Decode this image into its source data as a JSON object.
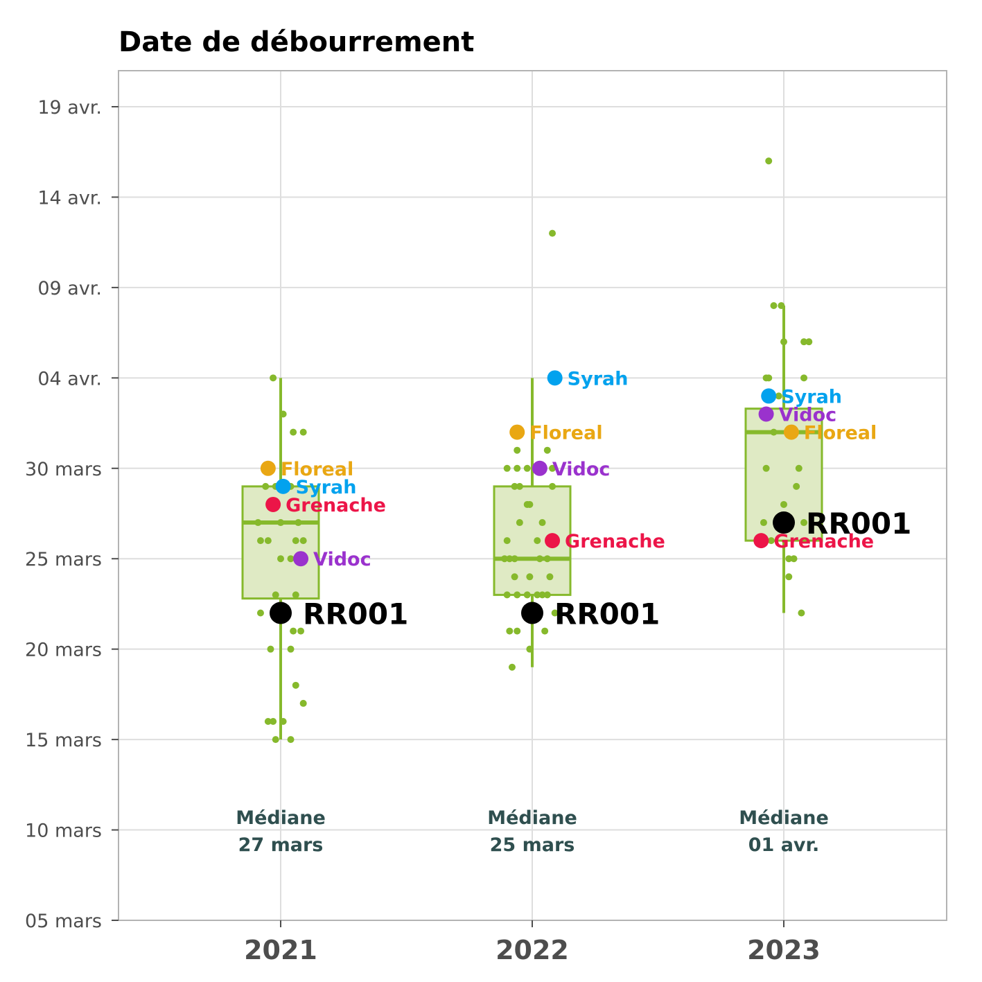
{
  "chart_data": {
    "type": "box",
    "title": "Date de débourrement",
    "xlabel": "",
    "ylabel": "",
    "categories": [
      "2021",
      "2022",
      "2023"
    ],
    "y_axis": {
      "min": "2021-03-05",
      "max": "2021-04-22",
      "ticks": [
        {
          "date": "2021-03-05",
          "label": "05 mars"
        },
        {
          "date": "2021-03-10",
          "label": "10 mars"
        },
        {
          "date": "2021-03-15",
          "label": "15 mars"
        },
        {
          "date": "2021-03-20",
          "label": "20 mars"
        },
        {
          "date": "2021-03-25",
          "label": "25 mars"
        },
        {
          "date": "2021-03-30",
          "label": "30 mars"
        },
        {
          "date": "2021-04-04",
          "label": "04 avr."
        },
        {
          "date": "2021-04-09",
          "label": "09 avr."
        },
        {
          "date": "2021-04-14",
          "label": "14 avr."
        },
        {
          "date": "2021-04-19",
          "label": "19 avr."
        }
      ]
    },
    "grid": true,
    "colors": {
      "box": "#86b92c",
      "box_fill": "#dfeac4",
      "points": "#86b92c",
      "reference": "#000000",
      "median_text": "#2f4f4f"
    },
    "groups": [
      {
        "year": "2021",
        "median_label": "Médiane",
        "median_value": "27 mars",
        "box": {
          "whisker_low": "03-15",
          "q1": "03-22.8",
          "median": "03-27",
          "q3": "03-29",
          "whisker_high": "04-04"
        },
        "points": [
          {
            "dx": -0.03,
            "d": "04-04"
          },
          {
            "dx": 0.01,
            "d": "04-02"
          },
          {
            "dx": 0.05,
            "d": "04-01"
          },
          {
            "dx": 0.09,
            "d": "04-01"
          },
          {
            "dx": -0.06,
            "d": "29"
          },
          {
            "dx": -0.02,
            "d": "29"
          },
          {
            "dx": 0.04,
            "d": "29"
          },
          {
            "dx": -0.09,
            "d": "27"
          },
          {
            "dx": 0.0,
            "d": "27"
          },
          {
            "dx": 0.07,
            "d": "27"
          },
          {
            "dx": -0.08,
            "d": "26"
          },
          {
            "dx": -0.05,
            "d": "26"
          },
          {
            "dx": 0.06,
            "d": "26"
          },
          {
            "dx": 0.09,
            "d": "26"
          },
          {
            "dx": 0.0,
            "d": "25"
          },
          {
            "dx": 0.04,
            "d": "25"
          },
          {
            "dx": -0.02,
            "d": "23"
          },
          {
            "dx": 0.06,
            "d": "23"
          },
          {
            "dx": -0.08,
            "d": "22"
          },
          {
            "dx": 0.05,
            "d": "21"
          },
          {
            "dx": 0.08,
            "d": "21"
          },
          {
            "dx": -0.04,
            "d": "20"
          },
          {
            "dx": 0.04,
            "d": "20"
          },
          {
            "dx": 0.06,
            "d": "18"
          },
          {
            "dx": 0.09,
            "d": "17"
          },
          {
            "dx": -0.05,
            "d": "16"
          },
          {
            "dx": -0.03,
            "d": "16"
          },
          {
            "dx": 0.01,
            "d": "16"
          },
          {
            "dx": -0.02,
            "d": "15"
          },
          {
            "dx": 0.04,
            "d": "15"
          }
        ],
        "highlights": [
          {
            "name": "Floreal",
            "d": "30",
            "dx": -0.05,
            "color": "#e9a713"
          },
          {
            "name": "Syrah",
            "d": "29",
            "dx": 0.01,
            "color": "#02a2ee"
          },
          {
            "name": "Grenache",
            "d": "28",
            "dx": -0.03,
            "color": "#ec1548"
          },
          {
            "name": "Vidoc",
            "d": "25",
            "dx": 0.08,
            "color": "#9a32cd"
          }
        ],
        "reference": {
          "name": "RR001",
          "d": "22",
          "dx": 0.0
        }
      },
      {
        "year": "2022",
        "median_label": "Médiane",
        "median_value": "25 mars",
        "box": {
          "whisker_low": "03-19",
          "q1": "03-23",
          "median": "03-25",
          "q3": "03-29",
          "whisker_high": "04-04"
        },
        "points": [
          {
            "dx": 0.08,
            "d": "04-12"
          },
          {
            "dx": -0.06,
            "d": "31"
          },
          {
            "dx": 0.06,
            "d": "31"
          },
          {
            "dx": -0.1,
            "d": "30"
          },
          {
            "dx": -0.06,
            "d": "30"
          },
          {
            "dx": -0.02,
            "d": "30"
          },
          {
            "dx": 0.08,
            "d": "30"
          },
          {
            "dx": -0.07,
            "d": "29"
          },
          {
            "dx": -0.05,
            "d": "29"
          },
          {
            "dx": 0.08,
            "d": "29"
          },
          {
            "dx": -0.02,
            "d": "28"
          },
          {
            "dx": -0.01,
            "d": "28"
          },
          {
            "dx": -0.05,
            "d": "27"
          },
          {
            "dx": 0.04,
            "d": "27"
          },
          {
            "dx": -0.1,
            "d": "26"
          },
          {
            "dx": 0.02,
            "d": "26"
          },
          {
            "dx": -0.11,
            "d": "25"
          },
          {
            "dx": -0.09,
            "d": "25"
          },
          {
            "dx": -0.07,
            "d": "25"
          },
          {
            "dx": 0.03,
            "d": "25"
          },
          {
            "dx": 0.06,
            "d": "25"
          },
          {
            "dx": -0.07,
            "d": "24"
          },
          {
            "dx": -0.01,
            "d": "24"
          },
          {
            "dx": 0.07,
            "d": "24"
          },
          {
            "dx": -0.1,
            "d": "23"
          },
          {
            "dx": -0.06,
            "d": "23"
          },
          {
            "dx": -0.02,
            "d": "23"
          },
          {
            "dx": 0.02,
            "d": "23"
          },
          {
            "dx": 0.04,
            "d": "23"
          },
          {
            "dx": 0.06,
            "d": "23"
          },
          {
            "dx": 0.09,
            "d": "22"
          },
          {
            "dx": -0.09,
            "d": "21"
          },
          {
            "dx": -0.06,
            "d": "21"
          },
          {
            "dx": 0.05,
            "d": "21"
          },
          {
            "dx": -0.01,
            "d": "20"
          },
          {
            "dx": -0.08,
            "d": "19"
          }
        ],
        "highlights": [
          {
            "name": "Syrah",
            "d": "04-04",
            "dx": 0.09,
            "color": "#02a2ee"
          },
          {
            "name": "Floreal",
            "d": "04-01",
            "dx": -0.06,
            "color": "#e9a713"
          },
          {
            "name": "Vidoc",
            "d": "30",
            "dx": 0.03,
            "color": "#9a32cd"
          },
          {
            "name": "Grenache",
            "d": "26",
            "dx": 0.08,
            "color": "#ec1548"
          }
        ],
        "reference": {
          "name": "RR001",
          "d": "22",
          "dx": 0.0
        }
      },
      {
        "year": "2023",
        "median_label": "Médiane",
        "median_value": "01 avr.",
        "box": {
          "whisker_low": "03-22",
          "q1": "03-26",
          "median": "04-01",
          "q3": "04-02.3",
          "whisker_high": "04-08"
        },
        "points": [
          {
            "dx": -0.06,
            "d": "04-16"
          },
          {
            "dx": -0.04,
            "d": "04-08"
          },
          {
            "dx": -0.01,
            "d": "04-08"
          },
          {
            "dx": 0.0,
            "d": "04-06"
          },
          {
            "dx": 0.08,
            "d": "04-06"
          },
          {
            "dx": 0.1,
            "d": "04-06"
          },
          {
            "dx": -0.07,
            "d": "04-04"
          },
          {
            "dx": -0.06,
            "d": "04-04"
          },
          {
            "dx": 0.08,
            "d": "04-04"
          },
          {
            "dx": -0.02,
            "d": "04-03"
          },
          {
            "dx": -0.08,
            "d": "04-02"
          },
          {
            "dx": -0.04,
            "d": "04-01"
          },
          {
            "dx": -0.07,
            "d": "30"
          },
          {
            "dx": 0.06,
            "d": "30"
          },
          {
            "dx": 0.05,
            "d": "29"
          },
          {
            "dx": 0.0,
            "d": "28"
          },
          {
            "dx": -0.08,
            "d": "27"
          },
          {
            "dx": 0.08,
            "d": "27"
          },
          {
            "dx": -0.05,
            "d": "26"
          },
          {
            "dx": 0.02,
            "d": "25"
          },
          {
            "dx": 0.04,
            "d": "25"
          },
          {
            "dx": 0.02,
            "d": "24"
          },
          {
            "dx": 0.07,
            "d": "22"
          }
        ],
        "highlights": [
          {
            "name": "Syrah",
            "d": "04-03",
            "dx": -0.06,
            "color": "#02a2ee"
          },
          {
            "name": "Vidoc",
            "d": "04-02",
            "dx": -0.07,
            "color": "#9a32cd"
          },
          {
            "name": "Floreal",
            "d": "04-01",
            "dx": 0.03,
            "color": "#e9a713"
          },
          {
            "name": "Grenache",
            "d": "26",
            "dx": -0.09,
            "color": "#ec1548"
          }
        ],
        "reference": {
          "name": "RR001",
          "d": "27",
          "dx": 0.0
        }
      }
    ]
  }
}
